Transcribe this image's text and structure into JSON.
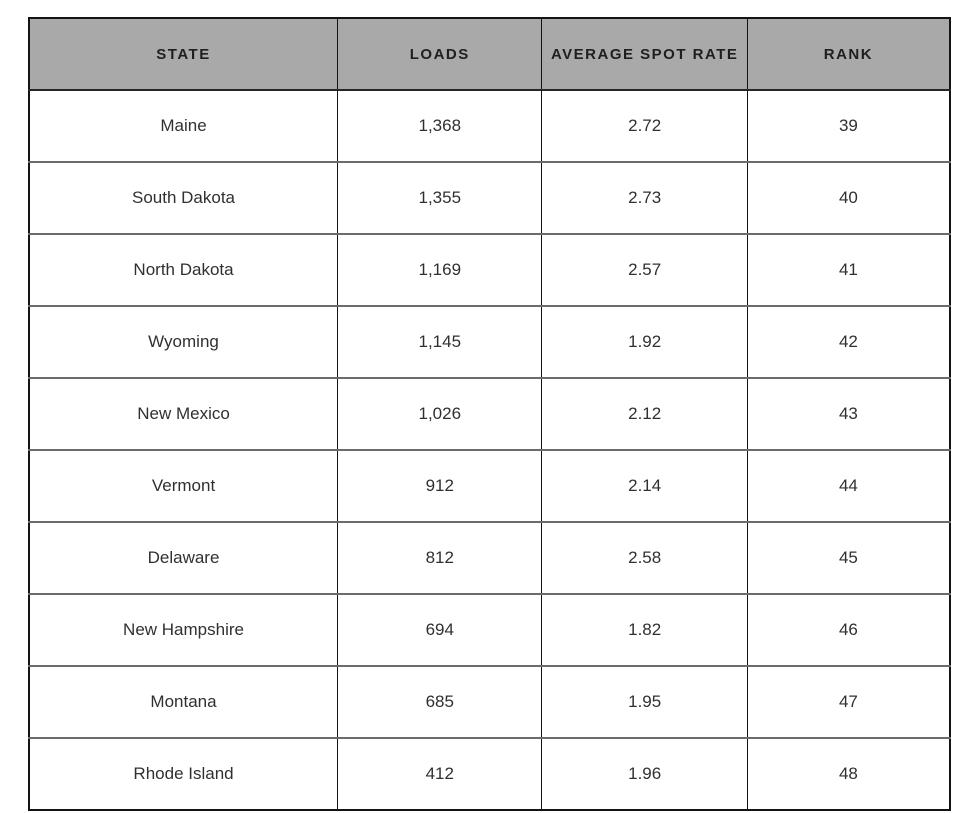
{
  "table": {
    "columns": [
      "STATE",
      "LOADS",
      "AVERAGE SPOT RATE",
      "RANK"
    ],
    "rows": [
      {
        "state": "Maine",
        "loads": "1,368",
        "avg_spot_rate": "2.72",
        "rank": "39"
      },
      {
        "state": "South Dakota",
        "loads": "1,355",
        "avg_spot_rate": "2.73",
        "rank": "40"
      },
      {
        "state": "North Dakota",
        "loads": "1,169",
        "avg_spot_rate": "2.57",
        "rank": "41"
      },
      {
        "state": "Wyoming",
        "loads": "1,145",
        "avg_spot_rate": "1.92",
        "rank": "42"
      },
      {
        "state": "New Mexico",
        "loads": "1,026",
        "avg_spot_rate": "2.12",
        "rank": "43"
      },
      {
        "state": "Vermont",
        "loads": "912",
        "avg_spot_rate": "2.14",
        "rank": "44"
      },
      {
        "state": "Delaware",
        "loads": "812",
        "avg_spot_rate": "2.58",
        "rank": "45"
      },
      {
        "state": "New Hampshire",
        "loads": "694",
        "avg_spot_rate": "1.82",
        "rank": "46"
      },
      {
        "state": "Montana",
        "loads": "685",
        "avg_spot_rate": "1.95",
        "rank": "47"
      },
      {
        "state": "Rhode Island",
        "loads": "412",
        "avg_spot_rate": "1.96",
        "rank": "48"
      }
    ]
  },
  "colors": {
    "header_bg": "#a9a9a9",
    "header_text": "#1f1f1f",
    "body_text": "#303030",
    "outer_border": "#141414",
    "row_divider": "#6b6b6b",
    "page_bg": "#ffffff"
  },
  "chart_data": {
    "type": "table",
    "columns": [
      "STATE",
      "LOADS",
      "AVERAGE SPOT RATE",
      "RANK"
    ],
    "rows": [
      [
        "Maine",
        1368,
        2.72,
        39
      ],
      [
        "South Dakota",
        1355,
        2.73,
        40
      ],
      [
        "North Dakota",
        1169,
        2.57,
        41
      ],
      [
        "Wyoming",
        1145,
        1.92,
        42
      ],
      [
        "New Mexico",
        1026,
        2.12,
        43
      ],
      [
        "Vermont",
        912,
        2.14,
        44
      ],
      [
        "Delaware",
        812,
        2.58,
        45
      ],
      [
        "New Hampshire",
        694,
        1.82,
        46
      ],
      [
        "Montana",
        685,
        1.95,
        47
      ],
      [
        "Rhode Island",
        412,
        1.96,
        48
      ]
    ]
  }
}
